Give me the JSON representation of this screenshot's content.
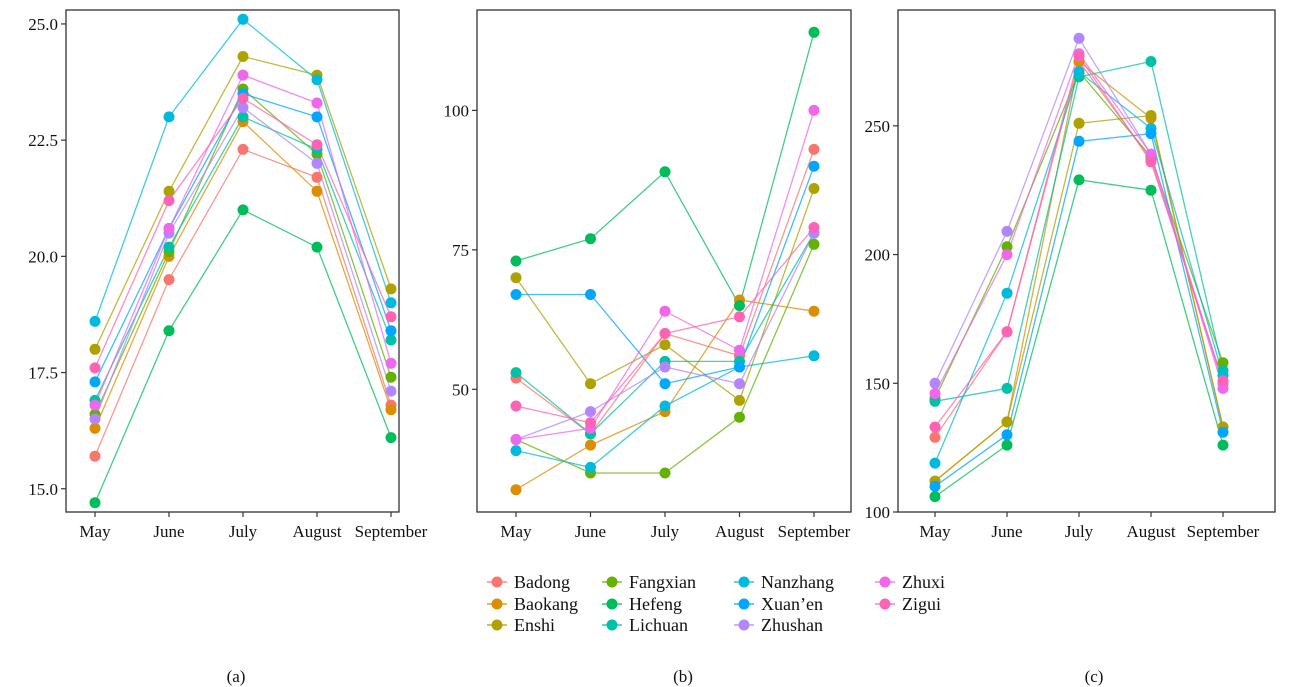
{
  "legend": {
    "stations": [
      "Badong",
      "Baokang",
      "Enshi",
      "Fangxian",
      "Hefeng",
      "Lichuan",
      "Nanzhang",
      "Xuan’en",
      "Zhushan",
      "Zhuxi",
      "Zigui"
    ],
    "colors": [
      "#F8766D",
      "#DB8E00",
      "#AEA200",
      "#64B200",
      "#00BD5C",
      "#00C1A7",
      "#00BADE",
      "#00A6FF",
      "#B385FF",
      "#EF67EB",
      "#FF63B6"
    ]
  },
  "chart_data": [
    {
      "type": "line",
      "caption": "(a)",
      "categories": [
        "May",
        "June",
        "July",
        "August",
        "September"
      ],
      "ylim": [
        14.5,
        25.3
      ],
      "yticks": [
        15.0,
        17.5,
        20.0,
        22.5,
        25.0
      ],
      "ytick_labels": [
        "15.0",
        "17.5",
        "20.0",
        "22.5",
        "25.0"
      ],
      "series": [
        {
          "name": "Badong",
          "values": [
            15.7,
            19.5,
            22.3,
            21.7,
            16.8
          ]
        },
        {
          "name": "Baokang",
          "values": [
            16.3,
            20.0,
            22.9,
            21.4,
            16.7
          ]
        },
        {
          "name": "Enshi",
          "values": [
            18.0,
            21.4,
            24.3,
            23.9,
            19.3
          ]
        },
        {
          "name": "Fangxian",
          "values": [
            16.6,
            20.1,
            23.6,
            22.2,
            17.4
          ]
        },
        {
          "name": "Hefeng",
          "values": [
            14.7,
            18.4,
            21.0,
            20.2,
            16.1
          ]
        },
        {
          "name": "Lichuan",
          "values": [
            16.9,
            20.2,
            23.0,
            22.3,
            18.2
          ]
        },
        {
          "name": "Nanzhang",
          "values": [
            18.6,
            23.0,
            25.1,
            23.8,
            19.0
          ]
        },
        {
          "name": "Xuan’en",
          "values": [
            17.3,
            20.6,
            23.5,
            23.0,
            18.4
          ]
        },
        {
          "name": "Zhushan",
          "values": [
            16.5,
            20.5,
            23.2,
            22.0,
            17.1
          ]
        },
        {
          "name": "Zhuxi",
          "values": [
            16.8,
            20.6,
            23.9,
            23.3,
            17.7
          ]
        },
        {
          "name": "Zigui",
          "values": [
            17.6,
            21.2,
            23.4,
            22.4,
            18.7
          ]
        }
      ]
    },
    {
      "type": "line",
      "caption": "(b)",
      "categories": [
        "May",
        "June",
        "July",
        "August",
        "September"
      ],
      "ylim": [
        28,
        118
      ],
      "yticks": [
        50,
        75,
        100
      ],
      "ytick_labels": [
        "50",
        "75",
        "100"
      ],
      "series": [
        {
          "name": "Badong",
          "values": [
            52,
            42,
            60,
            56,
            93
          ]
        },
        {
          "name": "Baokang",
          "values": [
            32,
            40,
            46,
            66,
            64
          ]
        },
        {
          "name": "Enshi",
          "values": [
            70,
            51,
            58,
            48,
            86
          ]
        },
        {
          "name": "Fangxian",
          "values": [
            41,
            35,
            35,
            45,
            76
          ]
        },
        {
          "name": "Hefeng",
          "values": [
            73,
            77,
            89,
            65,
            114
          ]
        },
        {
          "name": "Lichuan",
          "values": [
            53,
            42,
            55,
            55,
            78
          ]
        },
        {
          "name": "Nanzhang",
          "values": [
            39,
            36,
            47,
            54,
            56
          ]
        },
        {
          "name": "Xuan’en",
          "values": [
            67,
            67,
            51,
            54,
            90
          ]
        },
        {
          "name": "Zhushan",
          "values": [
            41,
            46,
            54,
            51,
            78
          ]
        },
        {
          "name": "Zhuxi",
          "values": [
            41,
            43,
            64,
            57,
            100
          ]
        },
        {
          "name": "Zigui",
          "values": [
            47,
            44,
            60,
            63,
            79
          ]
        }
      ]
    },
    {
      "type": "line",
      "caption": "(c)",
      "categories": [
        "May",
        "June",
        "July",
        "August",
        "September"
      ],
      "ylim": [
        100,
        295
      ],
      "yticks": [
        100,
        150,
        200,
        250
      ],
      "ytick_labels": [
        "100",
        "150",
        "200",
        "250"
      ],
      "series": [
        {
          "name": "Badong",
          "values": [
            129,
            170,
            275,
            237,
            150
          ]
        },
        {
          "name": "Baokang",
          "values": [
            112,
            135,
            275,
            253,
            133
          ]
        },
        {
          "name": "Enshi",
          "values": [
            112,
            135,
            251,
            254,
            133
          ]
        },
        {
          "name": "Fangxian",
          "values": [
            144,
            203,
            271,
            238,
            158
          ]
        },
        {
          "name": "Hefeng",
          "values": [
            106,
            126,
            229,
            225,
            126
          ]
        },
        {
          "name": "Lichuan",
          "values": [
            143,
            148,
            269,
            275,
            155
          ]
        },
        {
          "name": "Nanzhang",
          "values": [
            119,
            185,
            271,
            249,
            153
          ]
        },
        {
          "name": "Xuan’en",
          "values": [
            110,
            130,
            244,
            247,
            131
          ]
        },
        {
          "name": "Zhushan",
          "values": [
            150,
            209,
            284,
            239,
            150
          ]
        },
        {
          "name": "Zhuxi",
          "values": [
            146,
            200,
            278,
            239,
            148
          ]
        },
        {
          "name": "Zigui",
          "values": [
            133,
            170,
            277,
            236,
            151
          ]
        }
      ]
    }
  ]
}
